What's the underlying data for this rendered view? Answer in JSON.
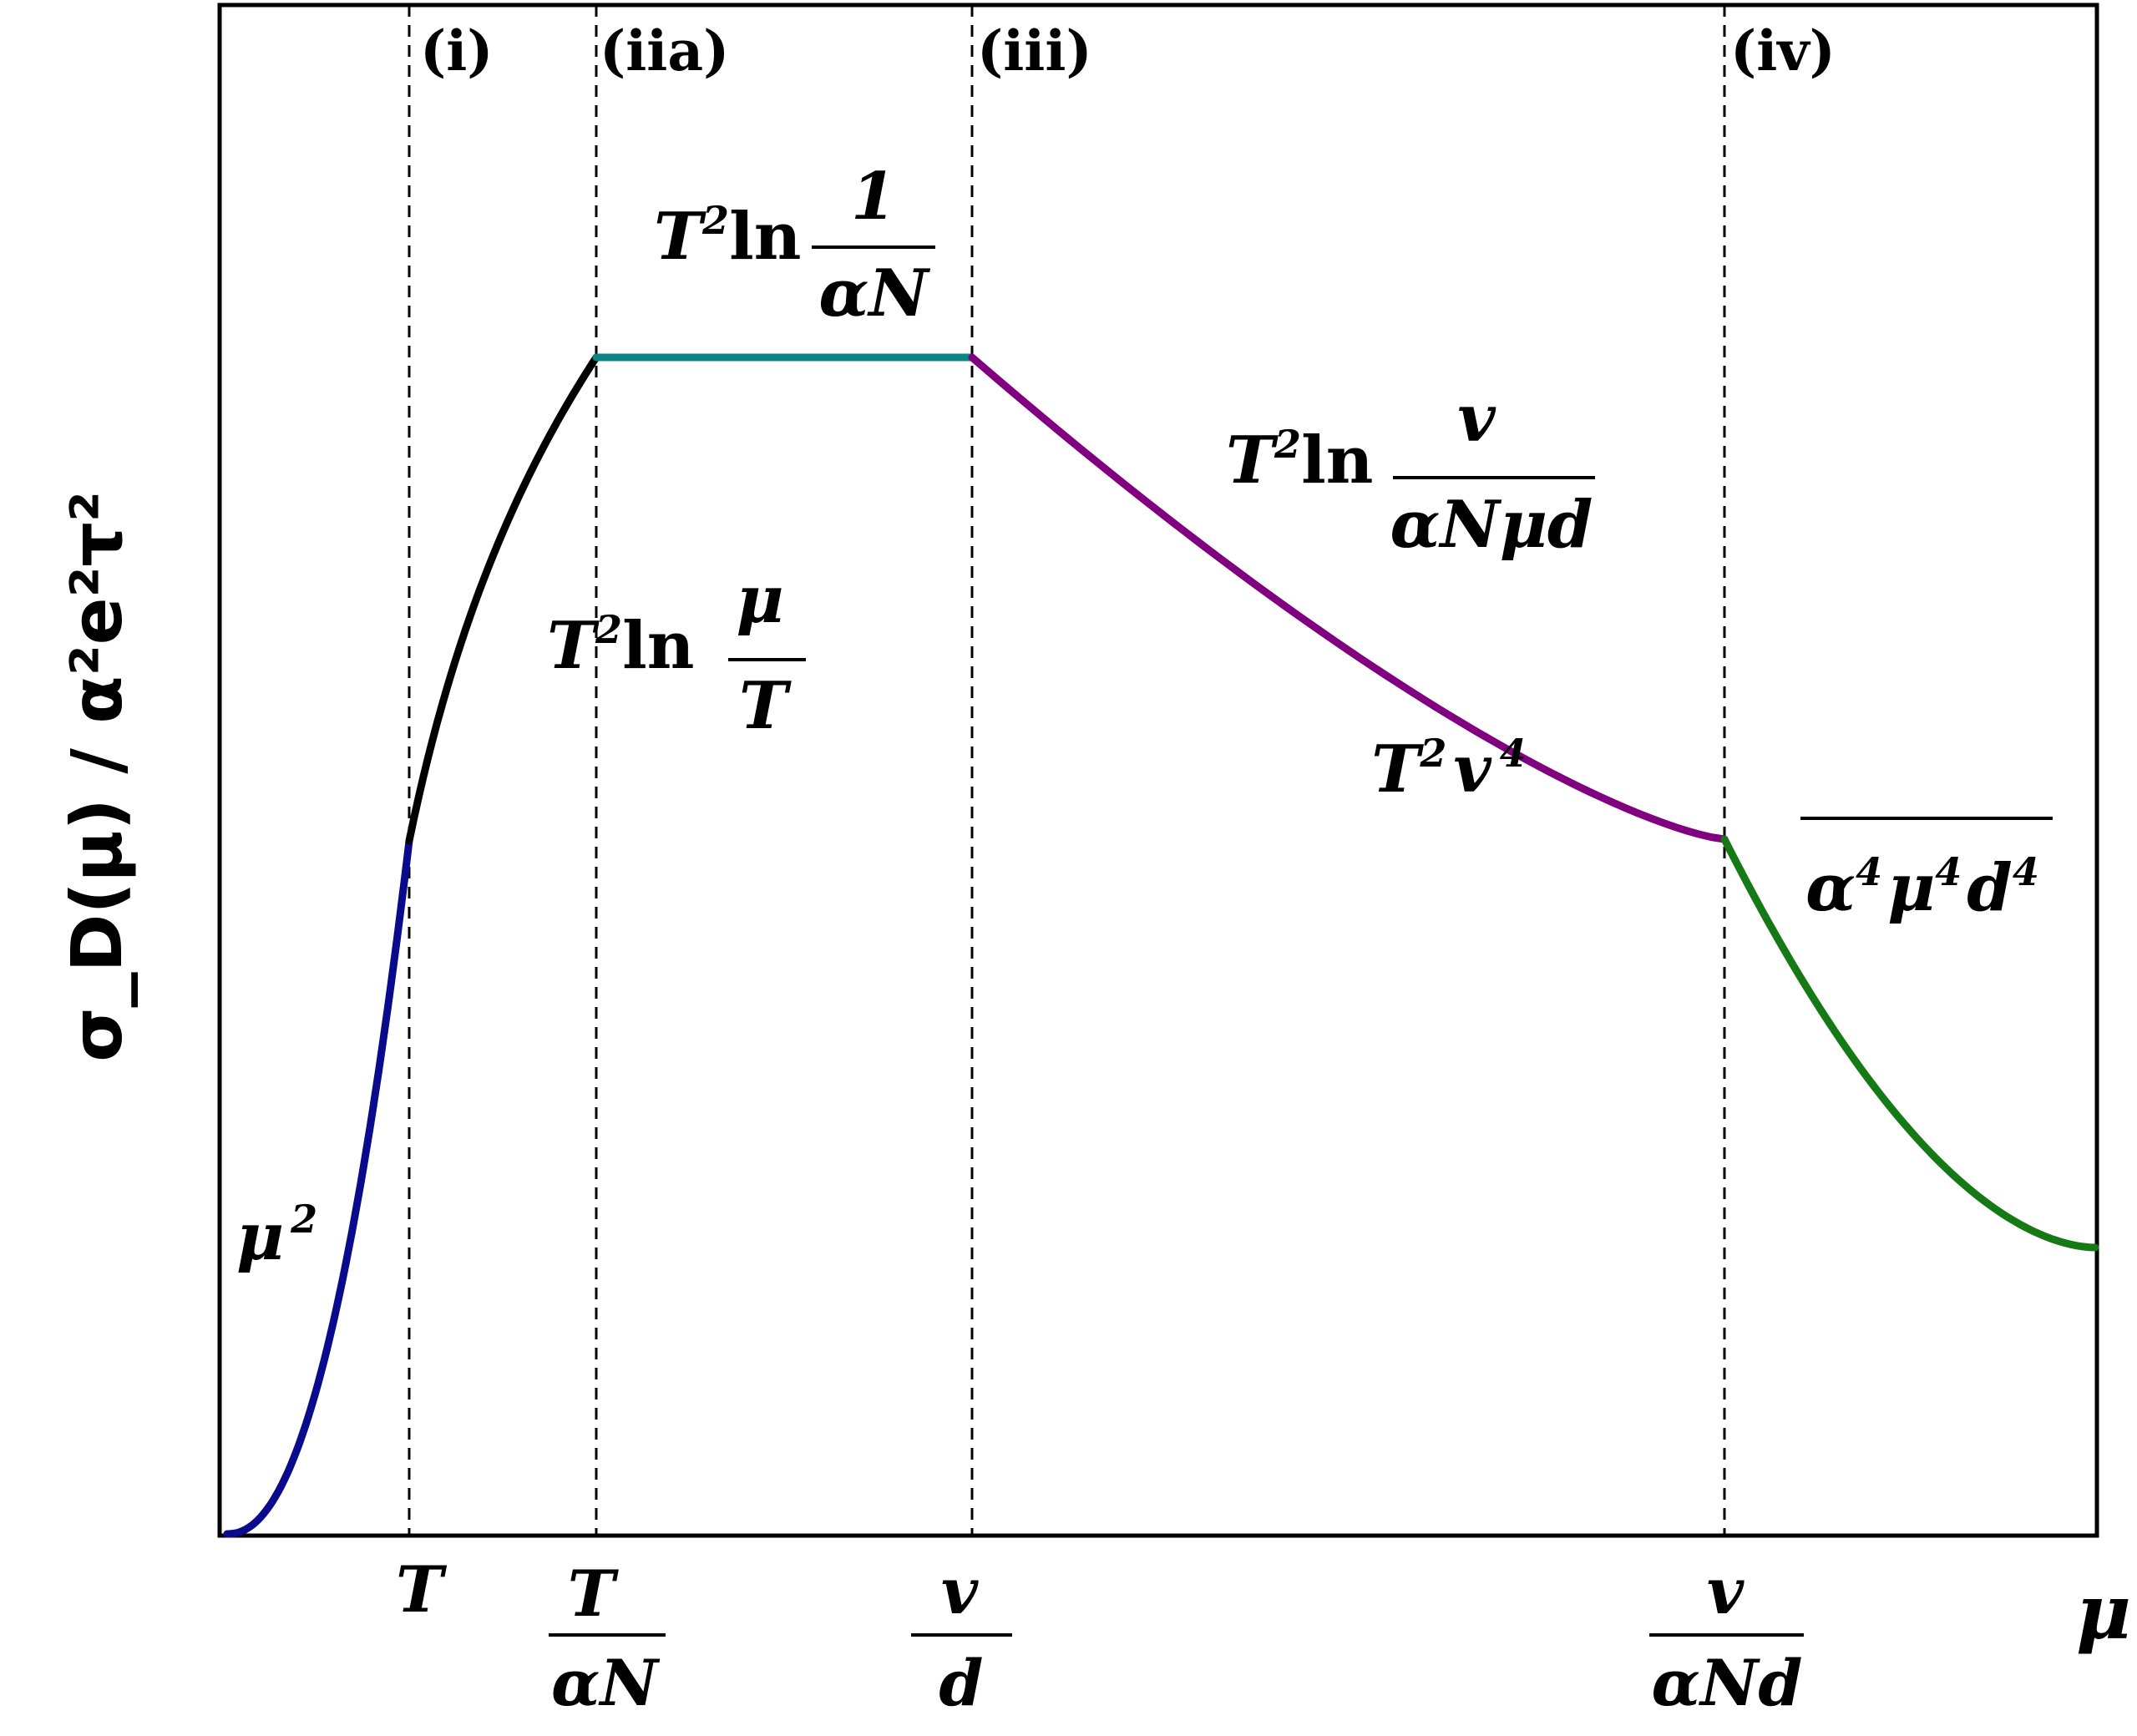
{
  "chart_data": {
    "type": "line",
    "xlabel": "μ",
    "ylabel": "σ_D(μ) / α²e²τ²",
    "x_ticks": [
      {
        "num": "T",
        "den": ""
      },
      {
        "num": "T",
        "den": "αN"
      },
      {
        "num": "v",
        "den": "d"
      },
      {
        "num": "v",
        "den": "αNd"
      }
    ],
    "regions": [
      "(i)",
      "(iia)",
      "(iii)",
      "(iv)"
    ],
    "annotations": [
      {
        "text": "μ²"
      },
      {
        "text": "T²ln μ/T"
      },
      {
        "text": "T²ln 1/αN"
      },
      {
        "text": "T²ln v/αNμd"
      },
      {
        "text": "T²v⁴/α⁴μ⁴d⁴"
      }
    ],
    "series": [
      {
        "segment": "μ²",
        "color": "#0a0a8c",
        "from": "0",
        "to": "T"
      },
      {
        "segment": "T²ln μ/T",
        "color": "#000000",
        "from": "T",
        "to": "T/αN"
      },
      {
        "segment": "T²ln 1/αN",
        "color": "#0e8585",
        "from": "T/αN",
        "to": "v/d"
      },
      {
        "segment": "T²ln v/αNμd",
        "color": "#800080",
        "from": "v/d",
        "to": "v/αNd"
      },
      {
        "segment": "T²v⁴/α⁴μ⁴d⁴",
        "color": "#157a15",
        "from": "v/αNd",
        "to": "μ"
      }
    ],
    "grid": false,
    "legend": "none"
  }
}
